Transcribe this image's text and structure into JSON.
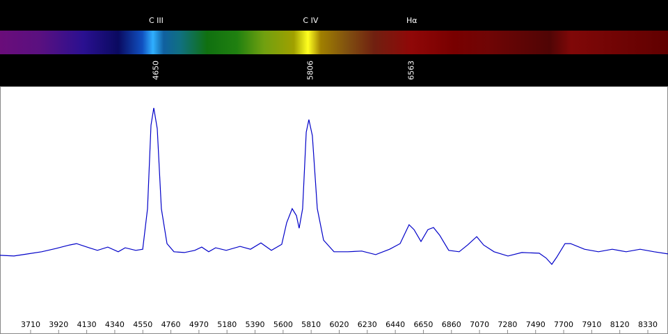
{
  "chart_data": {
    "type": "line",
    "lines": [
      {
        "label": "C III",
        "wavelength": 4650
      },
      {
        "label": "C IV",
        "wavelength": 5806
      },
      {
        "label": "Hα",
        "wavelength": 6563
      }
    ],
    "x": [
      3481,
      3585,
      3689,
      3793,
      3898,
      4002,
      4054,
      4132,
      4210,
      4288,
      4366,
      4418,
      4497,
      4549,
      4585,
      4611,
      4632,
      4658,
      4689,
      4731,
      4783,
      4861,
      4939,
      4991,
      5043,
      5095,
      5174,
      5278,
      5356,
      5434,
      5512,
      5590,
      5627,
      5668,
      5700,
      5720,
      5746,
      5773,
      5793,
      5819,
      5856,
      5903,
      5981,
      6085,
      6189,
      6293,
      6397,
      6476,
      6543,
      6580,
      6632,
      6684,
      6726,
      6772,
      6840,
      6918,
      6981,
      7049,
      7101,
      7179,
      7283,
      7387,
      7517,
      7569,
      7611,
      7647,
      7710,
      7752,
      7856,
      7960,
      8064,
      8168,
      8272,
      8377,
      8481
    ],
    "series": [
      {
        "color": "#0000c8",
        "values": [
          0.278,
          0.275,
          0.284,
          0.293,
          0.307,
          0.322,
          0.328,
          0.313,
          0.299,
          0.313,
          0.293,
          0.31,
          0.299,
          0.304,
          0.478,
          0.836,
          0.91,
          0.821,
          0.478,
          0.328,
          0.293,
          0.29,
          0.299,
          0.313,
          0.293,
          0.31,
          0.299,
          0.316,
          0.304,
          0.331,
          0.299,
          0.325,
          0.418,
          0.478,
          0.448,
          0.394,
          0.478,
          0.806,
          0.86,
          0.791,
          0.478,
          0.343,
          0.293,
          0.293,
          0.296,
          0.281,
          0.304,
          0.328,
          0.409,
          0.388,
          0.337,
          0.388,
          0.397,
          0.364,
          0.299,
          0.293,
          0.322,
          0.358,
          0.322,
          0.293,
          0.275,
          0.29,
          0.287,
          0.266,
          0.239,
          0.269,
          0.328,
          0.328,
          0.304,
          0.293,
          0.304,
          0.293,
          0.304,
          0.293,
          0.284
        ]
      }
    ],
    "xlim": [
      3481,
      8481
    ],
    "ylim": [
      0,
      1
    ],
    "xticks": [
      3710,
      3920,
      4130,
      4340,
      4550,
      4760,
      4970,
      5180,
      5390,
      5600,
      5810,
      6020,
      6230,
      6440,
      6650,
      6860,
      7070,
      7280,
      7490,
      7700,
      7910,
      8120,
      8330
    ]
  }
}
